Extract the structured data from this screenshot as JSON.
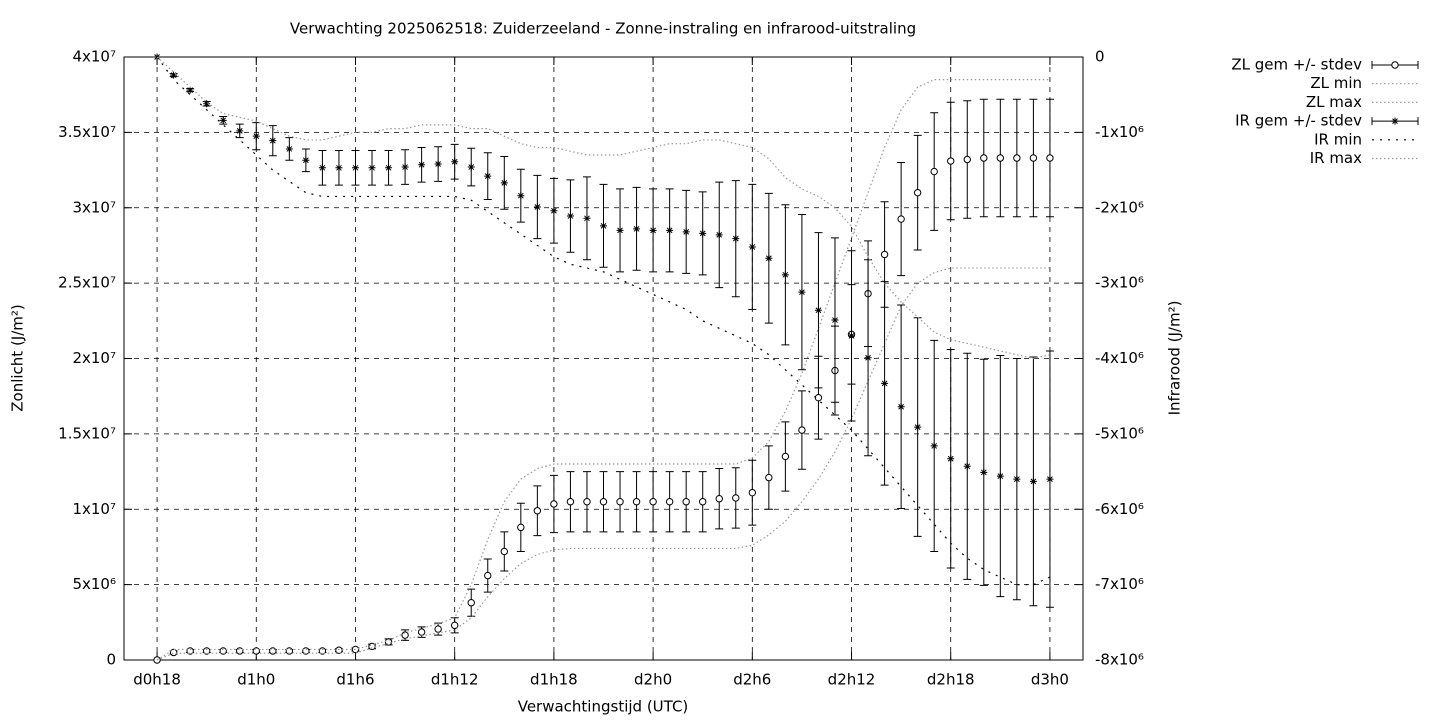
{
  "chart_data": {
    "type": "errorbar",
    "title": "Verwachting 2025062518: Zuiderzeeland - Zonne-instraling en infrarood-uitstraling",
    "xlabel": "Verwachtingstijd (UTC)",
    "ylabel": "Zonlicht (J/m²)",
    "y2label": "Infrarood (J/m²)",
    "x": [
      0,
      1,
      2,
      3,
      4,
      5,
      6,
      7,
      8,
      9,
      10,
      11,
      12,
      13,
      14,
      15,
      16,
      17,
      18,
      19,
      20,
      21,
      22,
      23,
      24,
      25,
      26,
      27,
      28,
      29,
      30,
      31,
      32,
      33,
      34,
      35,
      36,
      37,
      38,
      39,
      40,
      41,
      42,
      43,
      44,
      45,
      46,
      47,
      48,
      49,
      50,
      51,
      52,
      53,
      54
    ],
    "xlim": [
      -2,
      56
    ],
    "xticks": [
      {
        "value": 0,
        "label": "d0h18"
      },
      {
        "value": 6,
        "label": "d1h0"
      },
      {
        "value": 12,
        "label": "d1h6"
      },
      {
        "value": 18,
        "label": "d1h12"
      },
      {
        "value": 24,
        "label": "d1h18"
      },
      {
        "value": 30,
        "label": "d2h0"
      },
      {
        "value": 36,
        "label": "d2h6"
      },
      {
        "value": 42,
        "label": "d2h12"
      },
      {
        "value": 48,
        "label": "d2h18"
      },
      {
        "value": 54,
        "label": "d3h0"
      }
    ],
    "ylim": [
      0,
      40000000.0
    ],
    "yticks": [
      0,
      {
        "value": 5000000.0,
        "label": "5x10⁶"
      },
      {
        "value": 10000000.0,
        "label": "1x10⁷"
      },
      {
        "value": 15000000.0,
        "label": "1.5x10⁷"
      },
      {
        "value": 20000000.0,
        "label": "2x10⁷"
      },
      {
        "value": 25000000.0,
        "label": "2.5x10⁷"
      },
      {
        "value": 30000000.0,
        "label": "3x10⁷"
      },
      {
        "value": 35000000.0,
        "label": "3.5x10⁷"
      },
      {
        "value": 40000000.0,
        "label": "4x10⁷"
      }
    ],
    "y2lim": [
      -8000000.0,
      0
    ],
    "y2ticks": [
      {
        "value": -8000000.0,
        "label": "-8x10⁶"
      },
      {
        "value": -7000000.0,
        "label": "-7x10⁶"
      },
      {
        "value": -6000000.0,
        "label": "-6x10⁶"
      },
      {
        "value": -5000000.0,
        "label": "-5x10⁶"
      },
      {
        "value": -4000000.0,
        "label": "-4x10⁶"
      },
      {
        "value": -3000000.0,
        "label": "-3x10⁶"
      },
      {
        "value": -2000000.0,
        "label": "-2x10⁶"
      },
      {
        "value": -1000000.0,
        "label": "-1x10⁶"
      },
      0
    ],
    "grid": true,
    "legend": "top right",
    "series": [
      {
        "name": "ZL gem +/- stdev",
        "style": "errorbars",
        "marker": "circle",
        "color": "#000000",
        "axis": "y",
        "values": [
          0,
          500000.0,
          600000.0,
          600000.0,
          600000.0,
          600000.0,
          600000.0,
          600000.0,
          600000.0,
          600000.0,
          600000.0,
          650000.0,
          700000.0,
          900000.0,
          1200000.0,
          1650000.0,
          1850000.0,
          2050000.0,
          2300000.0,
          3800000.0,
          5600000.0,
          7200000.0,
          8800000.0,
          9900000.0,
          10350000.0,
          10500000.0,
          10500000.0,
          10500000.0,
          10500000.0,
          10500000.0,
          10500000.0,
          10500000.0,
          10500000.0,
          10500000.0,
          10700000.0,
          10750000.0,
          11100000.0,
          12100000.0,
          13500000.0,
          15250000.0,
          17400000.0,
          19200000.0,
          21600000.0,
          24300000.0,
          26900000.0,
          29250000.0,
          31000000.0,
          32400000.0,
          33100000.0,
          33200000.0,
          33300000.0,
          33300000.0,
          33300000.0,
          33300000.0,
          33300000.0
        ],
        "errors": [
          0,
          100000.0,
          100000.0,
          100000.0,
          100000.0,
          100000.0,
          100000.0,
          100000.0,
          100000.0,
          100000.0,
          100000.0,
          100000.0,
          100000.0,
          150000.0,
          200000.0,
          350000.0,
          350000.0,
          400000.0,
          500000.0,
          900000.0,
          1100000.0,
          1300000.0,
          1600000.0,
          1650000.0,
          1900000.0,
          2000000.0,
          2000000.0,
          2000000.0,
          2000000.0,
          2000000.0,
          2000000.0,
          2000000.0,
          2000000.0,
          2000000.0,
          2000000.0,
          2000000.0,
          2150000.0,
          2100000.0,
          2300000.0,
          2600000.0,
          2750000.0,
          2950000.0,
          3300000.0,
          3500000.0,
          3500000.0,
          3750000.0,
          3800000.0,
          3900000.0,
          3900000.0,
          3900000.0,
          3900000.0,
          3900000.0,
          3900000.0,
          3900000.0,
          3900000.0
        ]
      },
      {
        "name": "ZL min",
        "style": "dotted",
        "color": "#999999",
        "axis": "y",
        "values": [
          0,
          450000.0,
          450000.0,
          450000.0,
          450000.0,
          450000.0,
          450000.0,
          450000.0,
          450000.0,
          450000.0,
          450000.0,
          450000.0,
          450000.0,
          800000.0,
          1100000.0,
          1400000.0,
          1600000.0,
          1800000.0,
          2000000.0,
          2800000.0,
          4200000.0,
          5400000.0,
          6400000.0,
          7000000.0,
          7300000.0,
          7400000.0,
          7400000.0,
          7400000.0,
          7400000.0,
          7400000.0,
          7400000.0,
          7400000.0,
          7400000.0,
          7400000.0,
          7400000.0,
          7400000.0,
          7600000.0,
          8300000.0,
          9200000.0,
          10500000.0,
          12000000.0,
          13800000.0,
          16000000.0,
          18500000.0,
          21000000.0,
          23500000.0,
          25000000.0,
          25700000.0,
          26000000.0,
          26000000.0,
          26000000.0,
          26000000.0,
          26000000.0,
          26000000.0,
          26000000.0
        ]
      },
      {
        "name": "ZL max",
        "style": "dotted",
        "color": "#999999",
        "axis": "y",
        "values": [
          0,
          700000.0,
          700000.0,
          700000.0,
          700000.0,
          700000.0,
          700000.0,
          700000.0,
          700000.0,
          700000.0,
          700000.0,
          700000.0,
          700000.0,
          1000000.0,
          1300000.0,
          1800000.0,
          2100000.0,
          2400000.0,
          2800000.0,
          5000000.0,
          8000000.0,
          10500000.0,
          12000000.0,
          12700000.0,
          13000000.0,
          13000000.0,
          13000000.0,
          13000000.0,
          13000000.0,
          13000000.0,
          13000000.0,
          13000000.0,
          13000000.0,
          13000000.0,
          13000000.0,
          13000000.0,
          13400000.0,
          14500000.0,
          16500000.0,
          19000000.0,
          22000000.0,
          25000000.0,
          28000000.0,
          31000000.0,
          34000000.0,
          36500000.0,
          38000000.0,
          38500000.0,
          38500000.0,
          38500000.0,
          38500000.0,
          38500000.0,
          38500000.0,
          38500000.0,
          38500000.0
        ]
      },
      {
        "name": "IR gem +/- stdev",
        "style": "errorbars",
        "marker": "star",
        "color": "#000000",
        "axis": "y2",
        "values": [
          0,
          -240000.0,
          -440000.0,
          -620000.0,
          -840000.0,
          -980000.0,
          -1050000.0,
          -1110000.0,
          -1220000.0,
          -1370000.0,
          -1470000.0,
          -1470000.0,
          -1470000.0,
          -1470000.0,
          -1470000.0,
          -1460000.0,
          -1430000.0,
          -1420000.0,
          -1390000.0,
          -1460000.0,
          -1580000.0,
          -1670000.0,
          -1840000.0,
          -1990000.0,
          -2040000.0,
          -2110000.0,
          -2140000.0,
          -2240000.0,
          -2300000.0,
          -2280000.0,
          -2300000.0,
          -2300000.0,
          -2320000.0,
          -2340000.0,
          -2360000.0,
          -2410000.0,
          -2520000.0,
          -2670000.0,
          -2890000.0,
          -3120000.0,
          -3360000.0,
          -3490000.0,
          -3700000.0,
          -3990000.0,
          -4330000.0,
          -4640000.0,
          -4910000.0,
          -5160000.0,
          -5330000.0,
          -5430000.0,
          -5510000.0,
          -5560000.0,
          -5600000.0,
          -5630000.0,
          -5600000.0
        ],
        "errors": [
          0,
          20000.0,
          20000.0,
          30000.0,
          50000.0,
          90000.0,
          180000.0,
          200000.0,
          150000.0,
          150000.0,
          230000.0,
          230000.0,
          230000.0,
          230000.0,
          230000.0,
          230000.0,
          230000.0,
          230000.0,
          230000.0,
          250000.0,
          310000.0,
          350000.0,
          350000.0,
          420000.0,
          430000.0,
          480000.0,
          550000.0,
          550000.0,
          550000.0,
          550000.0,
          550000.0,
          550000.0,
          550000.0,
          550000.0,
          700000.0,
          770000.0,
          830000.0,
          860000.0,
          930000.0,
          1030000.0,
          1030000.0,
          1090000.0,
          1130000.0,
          1300000.0,
          1350000.0,
          1350000.0,
          1450000.0,
          1400000.0,
          1450000.0,
          1500000.0,
          1500000.0,
          1600000.0,
          1600000.0,
          1650000.0,
          1700000.0
        ]
      },
      {
        "name": "IR min",
        "style": "dotted-sparse",
        "color": "#000000",
        "axis": "y2",
        "values": [
          0,
          -300000.0,
          -500000.0,
          -700000.0,
          -900000.0,
          -1100000.0,
          -1300000.0,
          -1500000.0,
          -1650000.0,
          -1800000.0,
          -1850000.0,
          -1850000.0,
          -1850000.0,
          -1850000.0,
          -1850000.0,
          -1850000.0,
          -1850000.0,
          -1850000.0,
          -1850000.0,
          -1900000.0,
          -2050000.0,
          -2200000.0,
          -2350000.0,
          -2500000.0,
          -2650000.0,
          -2750000.0,
          -2800000.0,
          -2850000.0,
          -2950000.0,
          -3050000.0,
          -3150000.0,
          -3250000.0,
          -3350000.0,
          -3500000.0,
          -3600000.0,
          -3700000.0,
          -3800000.0,
          -3950000.0,
          -4150000.0,
          -4350000.0,
          -4550000.0,
          -4750000.0,
          -4950000.0,
          -5200000.0,
          -5450000.0,
          -5700000.0,
          -5950000.0,
          -6200000.0,
          -6450000.0,
          -6650000.0,
          -6800000.0,
          -6900000.0,
          -7000000.0,
          -7000000.0,
          -6900000.0
        ]
      },
      {
        "name": "IR max",
        "style": "dotted",
        "color": "#999999",
        "axis": "y2",
        "values": [
          0,
          -200000.0,
          -400000.0,
          -600000.0,
          -750000.0,
          -800000.0,
          -850000.0,
          -950000.0,
          -1050000.0,
          -1100000.0,
          -1100000.0,
          -1050000.0,
          -1000000.0,
          -1000000.0,
          -950000.0,
          -950000.0,
          -900000.0,
          -900000.0,
          -900000.0,
          -950000.0,
          -950000.0,
          -1050000.0,
          -1150000.0,
          -1200000.0,
          -1200000.0,
          -1250000.0,
          -1300000.0,
          -1300000.0,
          -1300000.0,
          -1250000.0,
          -1200000.0,
          -1150000.0,
          -1150000.0,
          -1100000.0,
          -1100000.0,
          -1150000.0,
          -1200000.0,
          -1350000.0,
          -1600000.0,
          -1750000.0,
          -1850000.0,
          -2000000.0,
          -2250000.0,
          -2650000.0,
          -3000000.0,
          -3250000.0,
          -3450000.0,
          -3650000.0,
          -3750000.0,
          -3800000.0,
          -3850000.0,
          -3900000.0,
          -3950000.0,
          -4000000.0,
          -3950000.0
        ]
      }
    ]
  }
}
